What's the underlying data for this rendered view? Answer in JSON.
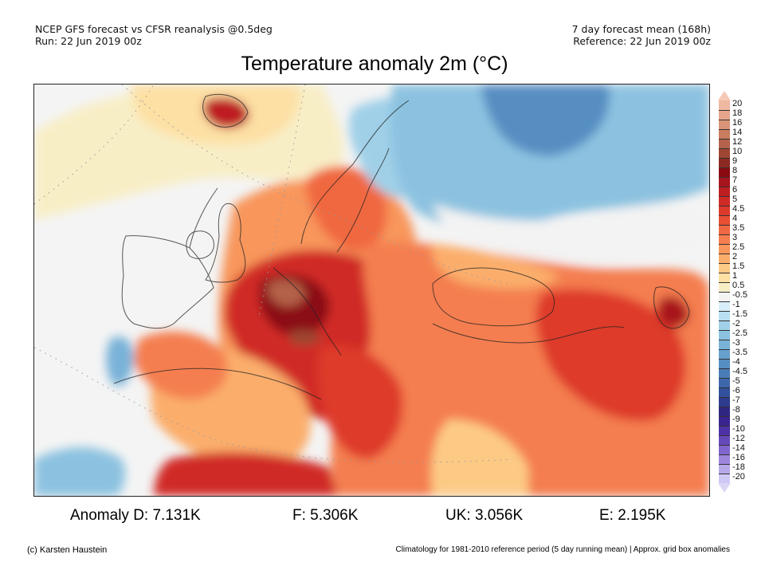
{
  "header": {
    "left_line1": "NCEP GFS forecast vs CFSR reanalysis @0.5deg",
    "left_line2": "Run: 22 Jun 2019 00z",
    "right_line1": "7 day forecast mean (168h)",
    "right_line2": "Reference: 22 Jun 2019 00z"
  },
  "title": "Temperature anomaly 2m (°C)",
  "map": {
    "region": "Europe",
    "variable": "2m temperature anomaly",
    "units": "°C"
  },
  "legend": {
    "extend_top_color": "#f6c9b5",
    "extend_bottom_color": "#dcd6f6",
    "bins": [
      {
        "label": "20",
        "color": "#efb8a0"
      },
      {
        "label": "18",
        "color": "#e5a58a"
      },
      {
        "label": "16",
        "color": "#d99477"
      },
      {
        "label": "14",
        "color": "#c97c5e"
      },
      {
        "label": "12",
        "color": "#b4624a"
      },
      {
        "label": "10",
        "color": "#9e4632"
      },
      {
        "label": "9",
        "color": "#8c2a22"
      },
      {
        "label": "8",
        "color": "#8b0a12"
      },
      {
        "label": "7",
        "color": "#a8141c"
      },
      {
        "label": "6",
        "color": "#be1e22"
      },
      {
        "label": "5",
        "color": "#d02a26"
      },
      {
        "label": "4.5",
        "color": "#de3a2c"
      },
      {
        "label": "4",
        "color": "#e84f33"
      },
      {
        "label": "3.5",
        "color": "#f06841"
      },
      {
        "label": "3",
        "color": "#f47e4f"
      },
      {
        "label": "2.5",
        "color": "#f8965c"
      },
      {
        "label": "2",
        "color": "#fbae6c"
      },
      {
        "label": "1.5",
        "color": "#fdca86"
      },
      {
        "label": "1",
        "color": "#fde0a4"
      },
      {
        "label": "0.5",
        "color": "#f8eec6"
      },
      {
        "label": "-0.5",
        "color": "#f3f3f3"
      },
      {
        "label": "-1",
        "color": "#d8eefa"
      },
      {
        "label": "-1.5",
        "color": "#b8dff2"
      },
      {
        "label": "-2",
        "color": "#a0d0e8"
      },
      {
        "label": "-2.5",
        "color": "#8cc2e0"
      },
      {
        "label": "-3",
        "color": "#79b2d8"
      },
      {
        "label": "-3.5",
        "color": "#66a0cd"
      },
      {
        "label": "-4",
        "color": "#568ec2"
      },
      {
        "label": "-4.5",
        "color": "#4a7cb8"
      },
      {
        "label": "-5",
        "color": "#3e66ab"
      },
      {
        "label": "-6",
        "color": "#33509c"
      },
      {
        "label": "-7",
        "color": "#2d3c8e"
      },
      {
        "label": "-8",
        "color": "#2f2680"
      },
      {
        "label": "-9",
        "color": "#3a2490"
      },
      {
        "label": "-10",
        "color": "#4c32a6"
      },
      {
        "label": "-12",
        "color": "#6549ba"
      },
      {
        "label": "-14",
        "color": "#8066cc"
      },
      {
        "label": "-16",
        "color": "#9d86dc"
      },
      {
        "label": "-18",
        "color": "#b8a8ea"
      },
      {
        "label": "-20",
        "color": "#d0c8f4"
      }
    ]
  },
  "stats": {
    "d": "Anomaly D: 7.131K",
    "f": "F: 5.306K",
    "uk": "UK: 3.056K",
    "e": "E: 2.195K"
  },
  "footer": {
    "left": "(c) Karsten Haustein",
    "right": "Climatology for 1981-2010 reference period (5 day running mean) | Approx. grid box anomalies"
  }
}
